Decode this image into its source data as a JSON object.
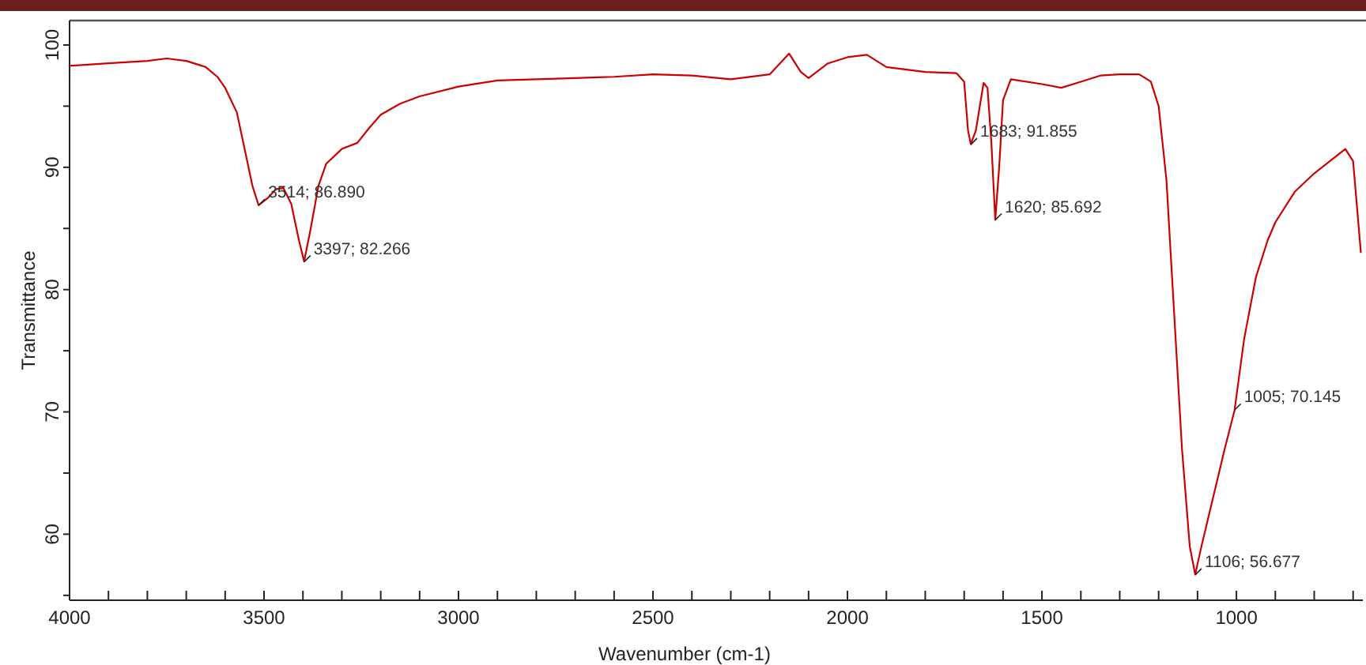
{
  "chart_data": {
    "type": "line",
    "xlabel": "Wavenumber (cm-1)",
    "ylabel": "Transmittance",
    "xlim": [
      4000,
      675
    ],
    "ylim": [
      54.6,
      102
    ],
    "xticks": [
      4000,
      {
        "value": 3900,
        "label": null
      },
      {
        "value": 3800,
        "label": null
      },
      {
        "value": 3700,
        "label": null
      },
      {
        "value": 3600,
        "label": null
      },
      3500,
      {
        "value": 3400,
        "label": null
      },
      {
        "value": 3300,
        "label": null
      },
      {
        "value": 3200,
        "label": null
      },
      {
        "value": 3100,
        "label": null
      },
      3000,
      {
        "value": 2900,
        "label": null
      },
      {
        "value": 2800,
        "label": null
      },
      {
        "value": 2700,
        "label": null
      },
      {
        "value": 2600,
        "label": null
      },
      2500,
      {
        "value": 2400,
        "label": null
      },
      {
        "value": 2300,
        "label": null
      },
      {
        "value": 2200,
        "label": null
      },
      {
        "value": 2100,
        "label": null
      },
      2000,
      {
        "value": 1900,
        "label": null
      },
      {
        "value": 1800,
        "label": null
      },
      {
        "value": 1700,
        "label": null
      },
      {
        "value": 1600,
        "label": null
      },
      1500,
      {
        "value": 1400,
        "label": null
      },
      {
        "value": 1300,
        "label": null
      },
      {
        "value": 1200,
        "label": null
      },
      {
        "value": 1100,
        "label": null
      },
      1000,
      {
        "value": 900,
        "label": null
      },
      {
        "value": 800,
        "label": null
      },
      {
        "value": 700,
        "label": null
      }
    ],
    "yticks": [
      60,
      {
        "value": 65,
        "label": null
      },
      70,
      {
        "value": 75,
        "label": null
      },
      80,
      {
        "value": 85,
        "label": null
      },
      90,
      {
        "value": 95,
        "label": null
      },
      100,
      {
        "value": 55,
        "label": null
      }
    ],
    "grid": false,
    "marker": "none",
    "line_style": "solid",
    "series": [
      {
        "color": "#cc0000",
        "x": [
          4000,
          3900,
          3800,
          3750,
          3700,
          3650,
          3620,
          3600,
          3570,
          3550,
          3530,
          3514,
          3490,
          3470,
          3450,
          3430,
          3410,
          3397,
          3380,
          3360,
          3340,
          3300,
          3260,
          3230,
          3200,
          3150,
          3100,
          3000,
          2900,
          2800,
          2700,
          2600,
          2500,
          2400,
          2300,
          2200,
          2150,
          2120,
          2100,
          2050,
          2000,
          1950,
          1900,
          1800,
          1720,
          1700,
          1690,
          1683,
          1670,
          1650,
          1640,
          1630,
          1620,
          1610,
          1600,
          1580,
          1500,
          1450,
          1400,
          1350,
          1300,
          1250,
          1220,
          1200,
          1180,
          1160,
          1140,
          1120,
          1106,
          1090,
          1060,
          1030,
          1005,
          980,
          950,
          920,
          900,
          850,
          800,
          760,
          720,
          700,
          680
        ],
        "values": [
          98.3,
          98.5,
          98.7,
          98.9,
          98.7,
          98.2,
          97.4,
          96.5,
          94.5,
          91.5,
          88.5,
          86.9,
          87.5,
          88.2,
          88.3,
          87,
          84,
          82.3,
          85,
          88.5,
          90.3,
          91.5,
          92,
          93.2,
          94.3,
          95.2,
          95.8,
          96.6,
          97.1,
          97.2,
          97.3,
          97.4,
          97.6,
          97.5,
          97.2,
          97.6,
          99.3,
          97.8,
          97.3,
          98.5,
          99,
          99.2,
          98.2,
          97.8,
          97.7,
          97,
          93,
          91.9,
          93,
          96.9,
          96.5,
          92,
          85.7,
          90,
          95.5,
          97.2,
          96.8,
          96.5,
          97,
          97.5,
          97.6,
          97.6,
          97,
          95,
          89,
          78,
          67,
          59,
          56.7,
          59,
          63,
          67,
          70.1,
          76,
          81,
          84,
          85.5,
          88,
          89.5,
          90.5,
          91.5,
          90.5,
          83
        ]
      }
    ],
    "annotations": [
      {
        "text": "3514; 86.890",
        "x": 3514,
        "y": 86.89
      },
      {
        "text": "3397; 82.266",
        "x": 3397,
        "y": 82.266
      },
      {
        "text": "1683; 91.855",
        "x": 1683,
        "y": 91.855
      },
      {
        "text": "1620; 85.692",
        "x": 1620,
        "y": 85.692
      },
      {
        "text": "1106; 56.677",
        "x": 1106,
        "y": 56.677
      },
      {
        "text": "1005; 70.145",
        "x": 1005,
        "y": 70.145
      }
    ]
  }
}
